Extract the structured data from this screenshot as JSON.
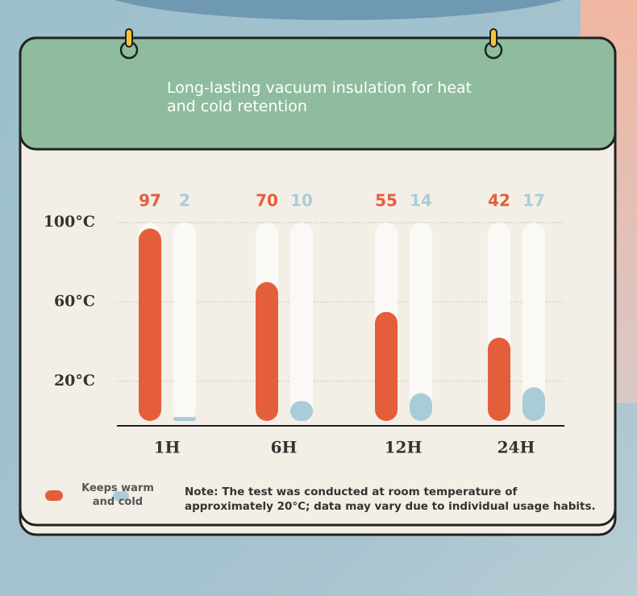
{
  "chart_data": {
    "type": "bar",
    "title": "Long-lasting vacuum insulation for heat and cold retention",
    "categories": [
      "1H",
      "6H",
      "12H",
      "24H"
    ],
    "series": [
      {
        "name": "Keeps warm and cold",
        "color": "#e45e3c",
        "values": [
          97,
          70,
          55,
          42
        ]
      },
      {
        "color": "#a9cdd8",
        "values": [
          2,
          10,
          14,
          17
        ]
      }
    ],
    "ylim": [
      0,
      100
    ],
    "yticks": [
      {
        "value": 20,
        "label": "20°C"
      },
      {
        "value": 60,
        "label": "60°C"
      },
      {
        "value": 100,
        "label": "100°C"
      }
    ],
    "grid": true,
    "note": "Note: The test was conducted at room temperature of approximately 20°C; data may vary due to individual usage habits."
  }
}
